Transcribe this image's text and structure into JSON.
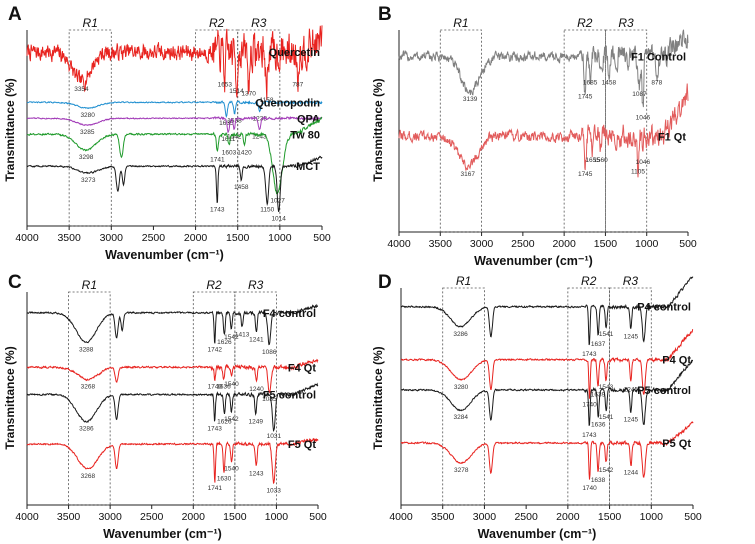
{
  "chart_data": [
    {
      "type": "line",
      "panel": "A",
      "xlabel": "Wavenumber",
      "xunit": "(cm⁻¹)",
      "ylabel": "Transmittance (%)",
      "xlim": [
        4000,
        500
      ],
      "xticks": [
        4000,
        3500,
        3000,
        2500,
        2000,
        1500,
        1000,
        500
      ],
      "regions": [
        {
          "name": "R1",
          "from": 3500,
          "to": 3000
        },
        {
          "name": "R2",
          "from": 2000,
          "to": 1500
        },
        {
          "name": "R3",
          "from": 1500,
          "to": 1000
        }
      ],
      "series": [
        {
          "name": "Quercetin",
          "color": "#e8231f",
          "level": 7.45,
          "noise": 0.6,
          "tail": 0.5,
          "peaks": [
            {
              "x": 3354,
              "label": "3354",
              "d": 1.3,
              "w": 150
            },
            {
              "x": 1653,
              "label": "1653",
              "d": 1.1,
              "w": 14
            },
            {
              "x": 1514,
              "label": "1514",
              "d": 1.4,
              "w": 14
            },
            {
              "x": 1370,
              "label": "1370",
              "d": 1.5,
              "w": 14
            },
            {
              "x": 1158,
              "label": "1158",
              "d": 1.8,
              "w": 14
            },
            {
              "x": 787,
              "label": "787",
              "d": 1.1,
              "w": 12
            }
          ]
        },
        {
          "name": "Quenopodin",
          "color": "#1f8fd0",
          "level": 5.25,
          "noise": 0.04,
          "tail": 0,
          "peaks": [
            {
              "x": 3280,
              "label": "3280",
              "d": 0.25,
              "w": 180
            },
            {
              "x": 1635,
              "label": "1635",
              "d": 0.6,
              "w": 20
            },
            {
              "x": 1538,
              "label": "1538",
              "d": 0.5,
              "w": 15
            },
            {
              "x": 1238,
              "label": "1238",
              "d": 0.4,
              "w": 20
            }
          ]
        },
        {
          "name": "QPA",
          "color": "#a23cb8",
          "level": 4.55,
          "noise": 0.04,
          "tail": 0,
          "peaks": [
            {
              "x": 3285,
              "label": "3285",
              "d": 0.3,
              "w": 180
            },
            {
              "x": 1611,
              "label": "1611",
              "d": 0.6,
              "w": 20
            },
            {
              "x": 1542,
              "label": "1542",
              "d": 0.5,
              "w": 15
            },
            {
              "x": 1243,
              "label": "1243",
              "d": 0.5,
              "w": 20
            }
          ]
        },
        {
          "name": "Tw 80",
          "color": "#1e9a2a",
          "level": 3.85,
          "noise": 0.06,
          "tail": 0.7,
          "peaks": [
            {
              "x": 3298,
              "label": "3298",
              "d": 0.7,
              "w": 170
            },
            {
              "x": 2880,
              "label": "",
              "d": 1.0,
              "w": 30
            },
            {
              "x": 1741,
              "label": "1741",
              "d": 0.8,
              "w": 15
            },
            {
              "x": 1603,
              "label": "1603",
              "d": 0.5,
              "w": 15
            },
            {
              "x": 1420,
              "label": "1420",
              "d": 0.5,
              "w": 15
            },
            {
              "x": 1027,
              "label": "1027",
              "d": 2.6,
              "w": 80
            }
          ]
        },
        {
          "name": "MCT",
          "color": "#1a1a1a",
          "level": 2.45,
          "noise": 0.05,
          "tail": 0.4,
          "peaks": [
            {
              "x": 3273,
              "label": "3273",
              "d": 0.3,
              "w": 170
            },
            {
              "x": 2922,
              "label": "",
              "d": 1.1,
              "w": 25
            },
            {
              "x": 2855,
              "label": "",
              "d": 0.8,
              "w": 20
            },
            {
              "x": 1743,
              "label": "1743",
              "d": 1.6,
              "w": 12
            },
            {
              "x": 1458,
              "label": "1458",
              "d": 0.6,
              "w": 15
            },
            {
              "x": 1150,
              "label": "1150",
              "d": 1.6,
              "w": 25
            },
            {
              "x": 1014,
              "label": "1014",
              "d": 2.0,
              "w": 25
            }
          ]
        }
      ]
    },
    {
      "type": "line",
      "panel": "B",
      "xlabel": "Wavenumber",
      "xunit": "(cm⁻¹)",
      "ylabel": "Transmittance (%)",
      "xlim": [
        4000,
        500
      ],
      "xticks": [
        4000,
        3500,
        3000,
        2500,
        2000,
        1500,
        1000,
        500
      ],
      "regions": [
        {
          "name": "R1",
          "from": 3500,
          "to": 3000
        },
        {
          "name": "R2",
          "from": 2000,
          "to": 1500
        },
        {
          "name": "R3",
          "from": 1500,
          "to": 1000
        }
      ],
      "series": [
        {
          "name": "F1 Control",
          "color": "#808080",
          "level": 7.3,
          "noise": 0.35,
          "tail": 0.8,
          "peaks": [
            {
              "x": 3139,
              "label": "3139",
              "d": 1.5,
              "w": 160
            },
            {
              "x": 1745,
              "label": "1745",
              "d": 1.4,
              "w": 15
            },
            {
              "x": 1685,
              "label": "1685",
              "d": 0.8,
              "w": 15
            },
            {
              "x": 1458,
              "label": "1458",
              "d": 0.8,
              "w": 15
            },
            {
              "x": 1087,
              "label": "1087",
              "d": 1.3,
              "w": 20
            },
            {
              "x": 1046,
              "label": "1046",
              "d": 2.3,
              "w": 15
            },
            {
              "x": 878,
              "label": "878",
              "d": 0.8,
              "w": 15
            }
          ]
        },
        {
          "name": "F1 Qt",
          "color": "#e25c5c",
          "level": 3.9,
          "noise": 0.35,
          "tail": 1.8,
          "peaks": [
            {
              "x": 3167,
              "label": "3167",
              "d": 1.3,
              "w": 160
            },
            {
              "x": 1745,
              "label": "1745",
              "d": 1.3,
              "w": 15
            },
            {
              "x": 1655,
              "label": "1655",
              "d": 0.7,
              "w": 15
            },
            {
              "x": 1560,
              "label": "1560",
              "d": 0.7,
              "w": 15
            },
            {
              "x": 1105,
              "label": "1105",
              "d": 1.2,
              "w": 15
            },
            {
              "x": 1046,
              "label": "1046",
              "d": 0.8,
              "w": 15
            }
          ]
        }
      ]
    },
    {
      "type": "line",
      "panel": "C",
      "xlabel": "Wavenumber",
      "xunit": "(cm⁻¹)",
      "ylabel": "Transmittance (%)",
      "xlim": [
        4000,
        500
      ],
      "xticks": [
        4000,
        3500,
        3000,
        2500,
        2000,
        1500,
        1000,
        500
      ],
      "regions": [
        {
          "name": "R1",
          "from": 3500,
          "to": 3000
        },
        {
          "name": "R2",
          "from": 2000,
          "to": 1500
        },
        {
          "name": "R3",
          "from": 1500,
          "to": 1000
        }
      ],
      "series": [
        {
          "name": "F4 control",
          "color": "#1a1a1a",
          "level": 7.6,
          "noise": 0.05,
          "tail": 0.3,
          "peaks": [
            {
              "x": 3288,
              "label": "3288",
              "d": 1.2,
              "w": 170
            },
            {
              "x": 2922,
              "label": "",
              "d": 1.0,
              "w": 25
            },
            {
              "x": 2855,
              "label": "",
              "d": 0.7,
              "w": 20
            },
            {
              "x": 1742,
              "label": "1742",
              "d": 1.2,
              "w": 12
            },
            {
              "x": 1626,
              "label": "1626",
              "d": 0.9,
              "w": 15
            },
            {
              "x": 1542,
              "label": "1542",
              "d": 0.7,
              "w": 15
            },
            {
              "x": 1413,
              "label": "1413",
              "d": 0.6,
              "w": 15
            },
            {
              "x": 1241,
              "label": "1241",
              "d": 0.8,
              "w": 15
            },
            {
              "x": 1086,
              "label": "1086",
              "d": 1.3,
              "w": 25
            }
          ]
        },
        {
          "name": "F4 Qt",
          "color": "#e8231f",
          "level": 5.4,
          "noise": 0.06,
          "tail": 0.3,
          "peaks": [
            {
              "x": 3268,
              "label": "3268",
              "d": 0.5,
              "w": 170
            },
            {
              "x": 2922,
              "label": "",
              "d": 0.6,
              "w": 25
            },
            {
              "x": 1740,
              "label": "1740",
              "d": 0.5,
              "w": 12
            },
            {
              "x": 1636,
              "label": "1636",
              "d": 0.5,
              "w": 15
            },
            {
              "x": 1540,
              "label": "1540",
              "d": 0.4,
              "w": 15
            },
            {
              "x": 1240,
              "label": "1240",
              "d": 0.6,
              "w": 15
            },
            {
              "x": 1085,
              "label": "1085",
              "d": 1.0,
              "w": 25
            }
          ]
        },
        {
          "name": "F5 control",
          "color": "#1a1a1a",
          "level": 4.3,
          "noise": 0.05,
          "tail": 0.4,
          "peaks": [
            {
              "x": 3286,
              "label": "3286",
              "d": 1.1,
              "w": 170
            },
            {
              "x": 2922,
              "label": "",
              "d": 1.0,
              "w": 25
            },
            {
              "x": 1743,
              "label": "1743",
              "d": 1.1,
              "w": 12
            },
            {
              "x": 1626,
              "label": "1626",
              "d": 0.8,
              "w": 15
            },
            {
              "x": 1542,
              "label": "1542",
              "d": 0.7,
              "w": 15
            },
            {
              "x": 1249,
              "label": "1249",
              "d": 0.8,
              "w": 15
            },
            {
              "x": 1031,
              "label": "1031",
              "d": 1.4,
              "w": 25
            }
          ]
        },
        {
          "name": "F5 Qt",
          "color": "#e8231f",
          "level": 2.3,
          "noise": 0.05,
          "tail": 0.2,
          "peaks": [
            {
              "x": 3268,
              "label": "3268",
              "d": 1.0,
              "w": 170
            },
            {
              "x": 2922,
              "label": "",
              "d": 1.0,
              "w": 25
            },
            {
              "x": 1741,
              "label": "1741",
              "d": 1.5,
              "w": 12
            },
            {
              "x": 1630,
              "label": "1630",
              "d": 1.1,
              "w": 15
            },
            {
              "x": 1540,
              "label": "1540",
              "d": 0.7,
              "w": 15
            },
            {
              "x": 1243,
              "label": "1243",
              "d": 0.9,
              "w": 15
            },
            {
              "x": 1033,
              "label": "1033",
              "d": 1.6,
              "w": 25
            }
          ]
        }
      ]
    },
    {
      "type": "line",
      "panel": "D",
      "xlabel": "Wavenumber",
      "xunit": "(cm⁻¹)",
      "ylabel": "Transmittance (%)",
      "xlim": [
        4000,
        500
      ],
      "xticks": [
        4000,
        3500,
        3000,
        2500,
        2000,
        1500,
        1000,
        500
      ],
      "regions": [
        {
          "name": "R1",
          "from": 3500,
          "to": 3000
        },
        {
          "name": "R2",
          "from": 2000,
          "to": 1500
        },
        {
          "name": "R3",
          "from": 1500,
          "to": 1000
        }
      ],
      "series": [
        {
          "name": "P4 control",
          "color": "#1a1a1a",
          "level": 7.7,
          "noise": 0.05,
          "tail": 1.2,
          "peaks": [
            {
              "x": 3286,
              "label": "3286",
              "d": 0.8,
              "w": 170
            },
            {
              "x": 2922,
              "label": "",
              "d": 1.2,
              "w": 25
            },
            {
              "x": 1743,
              "label": "1743",
              "d": 1.6,
              "w": 12
            },
            {
              "x": 1637,
              "label": "1637",
              "d": 1.2,
              "w": 15
            },
            {
              "x": 1541,
              "label": "1541",
              "d": 0.8,
              "w": 15
            },
            {
              "x": 1245,
              "label": "1245",
              "d": 0.9,
              "w": 15
            },
            {
              "x": 1090,
              "label": "",
              "d": 1.4,
              "w": 25
            }
          ]
        },
        {
          "name": "P4 Qt",
          "color": "#e8231f",
          "level": 5.6,
          "noise": 0.05,
          "tail": 1.2,
          "peaks": [
            {
              "x": 3280,
              "label": "3280",
              "d": 0.8,
              "w": 170
            },
            {
              "x": 2922,
              "label": "",
              "d": 1.2,
              "w": 25
            },
            {
              "x": 1740,
              "label": "1740",
              "d": 1.5,
              "w": 12
            },
            {
              "x": 1639,
              "label": "1639",
              "d": 1.1,
              "w": 15
            },
            {
              "x": 1543,
              "label": "1543",
              "d": 0.8,
              "w": 15
            },
            {
              "x": 1245,
              "label": "1245",
              "d": 0.9,
              "w": 15
            },
            {
              "x": 1090,
              "label": "",
              "d": 1.4,
              "w": 25
            }
          ]
        },
        {
          "name": "P5 control",
          "color": "#1a1a1a",
          "level": 4.4,
          "noise": 0.05,
          "tail": 1.2,
          "peaks": [
            {
              "x": 3284,
              "label": "3284",
              "d": 0.8,
              "w": 170
            },
            {
              "x": 2922,
              "label": "",
              "d": 1.2,
              "w": 25
            },
            {
              "x": 1743,
              "label": "1743",
              "d": 1.5,
              "w": 12
            },
            {
              "x": 1636,
              "label": "1636",
              "d": 1.1,
              "w": 15
            },
            {
              "x": 1541,
              "label": "1541",
              "d": 0.8,
              "w": 15
            },
            {
              "x": 1245,
              "label": "1245",
              "d": 0.9,
              "w": 15
            },
            {
              "x": 1090,
              "label": "",
              "d": 1.4,
              "w": 25
            }
          ]
        },
        {
          "name": "P5 Qt",
          "color": "#e8231f",
          "level": 2.3,
          "noise": 0.05,
          "tail": 0.8,
          "peaks": [
            {
              "x": 3278,
              "label": "3278",
              "d": 0.8,
              "w": 170
            },
            {
              "x": 2922,
              "label": "",
              "d": 1.2,
              "w": 25
            },
            {
              "x": 1740,
              "label": "1740",
              "d": 1.5,
              "w": 12
            },
            {
              "x": 1638,
              "label": "1638",
              "d": 1.2,
              "w": 15
            },
            {
              "x": 1542,
              "label": "1542",
              "d": 0.8,
              "w": 15
            },
            {
              "x": 1244,
              "label": "1244",
              "d": 0.9,
              "w": 15
            },
            {
              "x": 1090,
              "label": "",
              "d": 1.4,
              "w": 25
            }
          ]
        }
      ]
    }
  ]
}
